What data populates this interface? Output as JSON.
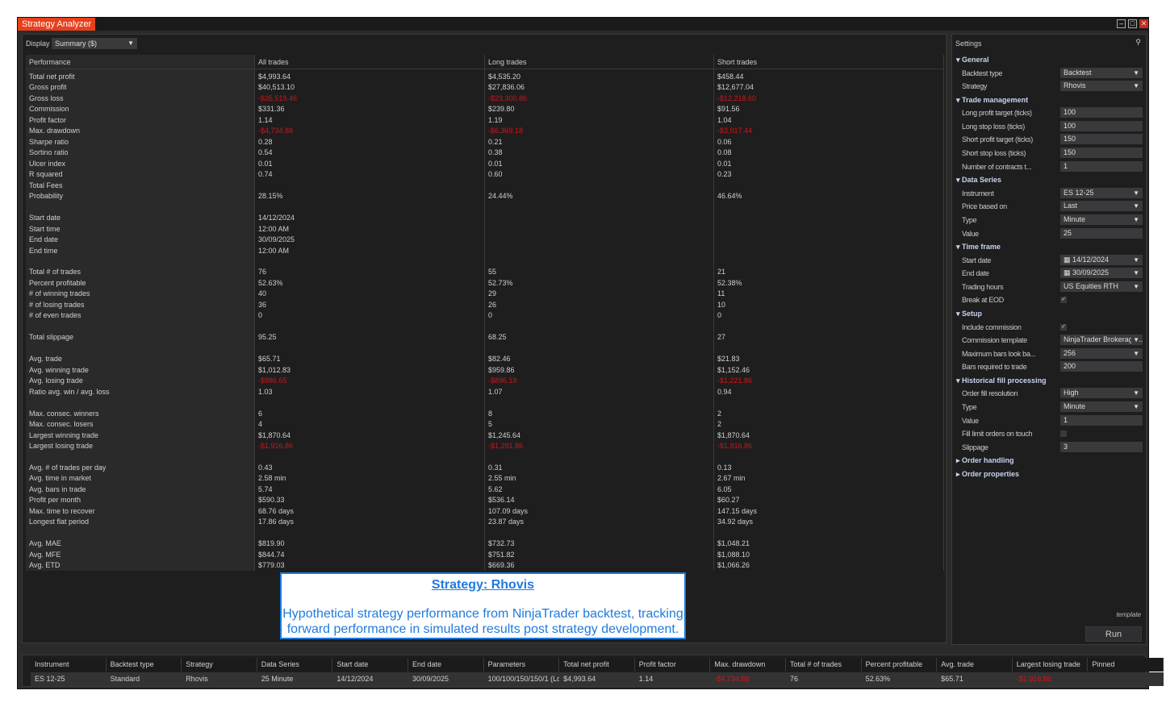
{
  "window": {
    "title": "Strategy Analyzer",
    "controls": [
      "minimize",
      "maximize",
      "close"
    ]
  },
  "display": {
    "label": "Display",
    "value": "Summary ($)"
  },
  "performance": {
    "headers": [
      "Performance",
      "All trades",
      "Long trades",
      "Short trades"
    ],
    "rows": [
      [
        "Total net profit",
        "$4,993.64",
        "$4,535.20",
        "$458.44"
      ],
      [
        "Gross profit",
        "$40,513.10",
        "$27,836.06",
        "$12,677.04"
      ],
      [
        "Gross loss",
        "-$35,519.46",
        "-$23,300.86",
        "-$12,218.60"
      ],
      [
        "Commission",
        "$331.36",
        "$239.80",
        "$91.56"
      ],
      [
        "Profit factor",
        "1.14",
        "1.19",
        "1.04"
      ],
      [
        "Max. drawdown",
        "-$4,734.88",
        "-$6,369.18",
        "-$3,017.44"
      ],
      [
        "Sharpe ratio",
        "0.28",
        "0.21",
        "0.06"
      ],
      [
        "Sortino ratio",
        "0.54",
        "0.38",
        "0.08"
      ],
      [
        "Ulcer index",
        "0.01",
        "0.01",
        "0.01"
      ],
      [
        "R squared",
        "0.74",
        "0.60",
        "0.23"
      ],
      [
        "Total Fees",
        "",
        "",
        ""
      ],
      [
        "Probability",
        "28.15%",
        "24.44%",
        "46.64%"
      ],
      [
        "",
        "",
        "",
        ""
      ],
      [
        "Start date",
        "14/12/2024",
        "",
        ""
      ],
      [
        "Start time",
        "12:00 AM",
        "",
        ""
      ],
      [
        "End date",
        "30/09/2025",
        "",
        ""
      ],
      [
        "End time",
        "12:00 AM",
        "",
        ""
      ],
      [
        "",
        "",
        "",
        ""
      ],
      [
        "Total # of trades",
        "76",
        "55",
        "21"
      ],
      [
        "Percent profitable",
        "52.63%",
        "52.73%",
        "52.38%"
      ],
      [
        "# of winning trades",
        "40",
        "29",
        "11"
      ],
      [
        "# of losing trades",
        "36",
        "26",
        "10"
      ],
      [
        "# of even trades",
        "0",
        "0",
        "0"
      ],
      [
        "",
        "",
        "",
        ""
      ],
      [
        "Total slippage",
        "95.25",
        "68.25",
        "27"
      ],
      [
        "",
        "",
        "",
        ""
      ],
      [
        "Avg. trade",
        "$65.71",
        "$82.46",
        "$21.83"
      ],
      [
        "Avg. winning trade",
        "$1,012.83",
        "$959.86",
        "$1,152.46"
      ],
      [
        "Avg. losing trade",
        "-$986.65",
        "-$896.19",
        "-$1,221.86"
      ],
      [
        "Ratio avg. win / avg. loss",
        "1.03",
        "1.07",
        "0.94"
      ],
      [
        "",
        "",
        "",
        ""
      ],
      [
        "Max. consec. winners",
        "6",
        "8",
        "2"
      ],
      [
        "Max. consec. losers",
        "4",
        "5",
        "2"
      ],
      [
        "Largest winning trade",
        "$1,870.64",
        "$1,245.64",
        "$1,870.64"
      ],
      [
        "Largest losing trade",
        "-$1,916.86",
        "-$1,291.86",
        "-$1,916.86"
      ],
      [
        "",
        "",
        "",
        ""
      ],
      [
        "Avg. # of trades per day",
        "0.43",
        "0.31",
        "0.13"
      ],
      [
        "Avg. time in market",
        "2.58 min",
        "2.55 min",
        "2.67 min"
      ],
      [
        "Avg. bars in trade",
        "5.74",
        "5.62",
        "6.05"
      ],
      [
        "Profit per month",
        "$590.33",
        "$536.14",
        "$60.27"
      ],
      [
        "Max. time to recover",
        "68.76 days",
        "107.09 days",
        "147.15 days"
      ],
      [
        "Longest flat period",
        "17.86 days",
        "23.87 days",
        "34.92 days"
      ],
      [
        "",
        "",
        "",
        ""
      ],
      [
        "Avg. MAE",
        "$819.90",
        "$732.73",
        "$1,048.21"
      ],
      [
        "Avg. MFE",
        "$844.74",
        "$751.82",
        "$1,088.10"
      ],
      [
        "Avg. ETD",
        "$779.03",
        "$669.36",
        "$1,066.26"
      ]
    ]
  },
  "note": {
    "title": "Strategy: Rhovis",
    "body": "Hypothetical strategy performance from NinjaTrader backtest, tracking forward performance in simulated results post strategy development."
  },
  "settings": {
    "title": "Settings",
    "template_link": "template",
    "run_label": "Run",
    "items": [
      {
        "section": "General",
        "expanded": true
      },
      {
        "label": "Backtest type",
        "value": "Backtest",
        "kind": "select"
      },
      {
        "label": "Strategy",
        "value": "Rhovis",
        "kind": "select"
      },
      {
        "section": "Trade management",
        "expanded": true
      },
      {
        "label": "Long profit target (ticks)",
        "value": "100",
        "kind": "text"
      },
      {
        "label": "Long stop loss (ticks)",
        "value": "100",
        "kind": "text"
      },
      {
        "label": "Short profit target (ticks)",
        "value": "150",
        "kind": "text"
      },
      {
        "label": "Short stop loss (ticks)",
        "value": "150",
        "kind": "text"
      },
      {
        "label": "Number of contracts t...",
        "value": "1",
        "kind": "text"
      },
      {
        "section": "Data Series",
        "expanded": true
      },
      {
        "label": "Instrument",
        "value": "ES 12-25",
        "kind": "select"
      },
      {
        "label": "Price based on",
        "value": "Last",
        "kind": "select"
      },
      {
        "label": "Type",
        "value": "Minute",
        "kind": "select"
      },
      {
        "label": "Value",
        "value": "25",
        "kind": "text"
      },
      {
        "section": "Time frame",
        "expanded": true
      },
      {
        "label": "Start date",
        "value": "14/12/2024",
        "kind": "date"
      },
      {
        "label": "End date",
        "value": "30/09/2025",
        "kind": "date"
      },
      {
        "label": "Trading hours",
        "value": "US Equities RTH",
        "kind": "select"
      },
      {
        "label": "Break at EOD",
        "checked": true,
        "kind": "check"
      },
      {
        "section": "Setup",
        "expanded": true
      },
      {
        "label": "Include commission",
        "checked": true,
        "kind": "check"
      },
      {
        "label": "Commission template",
        "value": "NinjaTrader Brokerage...",
        "kind": "select"
      },
      {
        "label": "Maximum bars look ba...",
        "value": "256",
        "kind": "select"
      },
      {
        "label": "Bars required to trade",
        "value": "200",
        "kind": "text"
      },
      {
        "section": "Historical fill processing",
        "expanded": true
      },
      {
        "label": "Order fill resolution",
        "value": "High",
        "kind": "select"
      },
      {
        "label": "Type",
        "value": "Minute",
        "kind": "select"
      },
      {
        "label": "Value",
        "value": "1",
        "kind": "text"
      },
      {
        "label": "Fill limit orders on touch",
        "checked": false,
        "kind": "check"
      },
      {
        "label": "Slippage",
        "value": "3",
        "kind": "text"
      },
      {
        "section": "Order handling",
        "expanded": false
      },
      {
        "section": "Order properties",
        "expanded": false
      }
    ]
  },
  "results_grid": {
    "headers": [
      "Instrument",
      "Backtest type",
      "Strategy",
      "Data Series",
      "Start date",
      "End date",
      "Parameters",
      "Total net profit",
      "Profit factor",
      "Max. drawdown",
      "Total # of trades",
      "Percent profitable",
      "Avg. trade",
      "Largest losing trade",
      "Pinned"
    ],
    "row": [
      "ES 12-25",
      "Standard",
      "Rhovis",
      "25 Minute",
      "14/12/2024",
      "30/09/2025",
      "100/100/150/150/1 (Lo",
      "$4,993.64",
      "1.14",
      "-$4,734.88",
      "76",
      "52.63%",
      "$65.71",
      "-$1,916.86",
      ""
    ]
  },
  "colors": {
    "accent": "#e8401c",
    "negative": "#d0141a",
    "note": "#1e7be0"
  }
}
